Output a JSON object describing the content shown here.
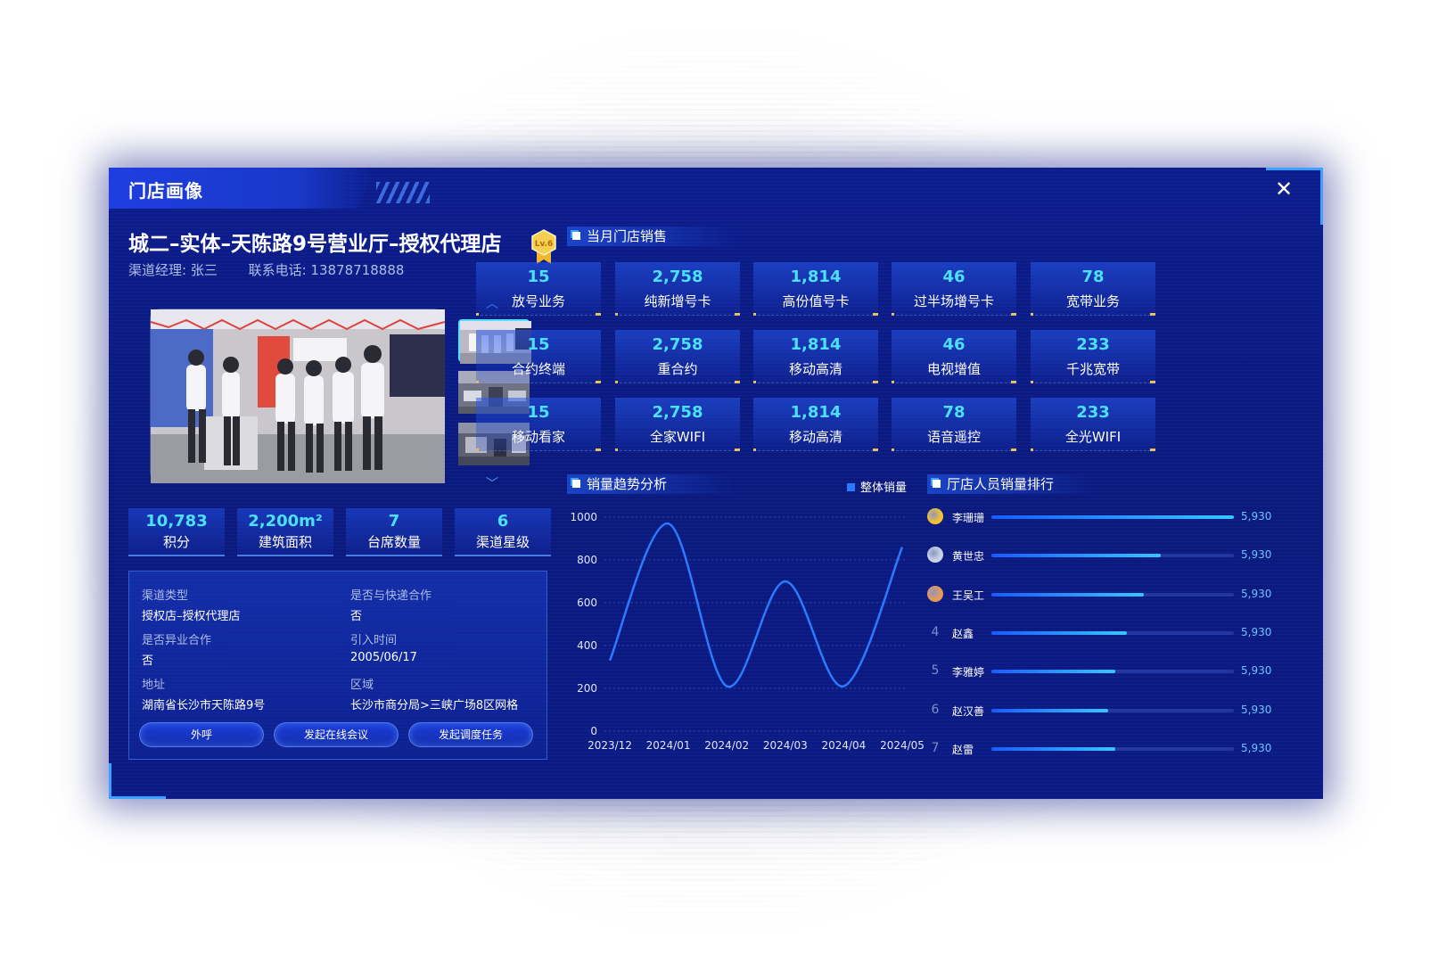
{
  "window": {
    "title": "门店画像",
    "close_icon": "close-icon"
  },
  "store": {
    "name": "城二–实体–天陈路9号营业厅–授权代理店",
    "level": "Lv.6",
    "manager": "渠道经理: 张三",
    "phone": "联系电话: 13878718888"
  },
  "stats": [
    {
      "value": "10,783",
      "label": "积分"
    },
    {
      "value": "2,200m²",
      "label": "建筑面积"
    },
    {
      "value": "7",
      "label": "台席数量"
    },
    {
      "value": "6",
      "label": "渠道星级"
    }
  ],
  "info": {
    "channel_type_k": "渠道类型",
    "channel_type_v": "授权店–授权代理店",
    "express_k": "是否与快递合作",
    "express_v": "否",
    "crossbiz_k": "是否异业合作",
    "crossbiz_v": "否",
    "intro_k": "引入时间",
    "intro_v": "2005/06/17",
    "addr_k": "地址",
    "addr_v": "湖南省长沙市天陈路9号",
    "region_k": "区域",
    "region_v": "长沙市商分局>三峡广场8区网格"
  },
  "actions": {
    "call": "外呼",
    "meeting": "发起在线会议",
    "dispatch": "发起调度任务"
  },
  "sections": {
    "sales": "当月门店销售",
    "trend": "销量趋势分析",
    "ranking": "厅店人员销量排行"
  },
  "metrics": [
    {
      "value": "15",
      "label": "放号业务"
    },
    {
      "value": "2,758",
      "label": "纯新增号卡"
    },
    {
      "value": "1,814",
      "label": "高份值号卡"
    },
    {
      "value": "46",
      "label": "过半场增号卡"
    },
    {
      "value": "78",
      "label": "宽带业务"
    },
    {
      "value": "15",
      "label": "合约终端"
    },
    {
      "value": "2,758",
      "label": "重合约"
    },
    {
      "value": "1,814",
      "label": "移动高清"
    },
    {
      "value": "46",
      "label": "电视增值"
    },
    {
      "value": "233",
      "label": "千兆宽带"
    },
    {
      "value": "15",
      "label": "移动看家"
    },
    {
      "value": "2,758",
      "label": "全家WIFI"
    },
    {
      "value": "1,814",
      "label": "移动高清"
    },
    {
      "value": "78",
      "label": "语音遥控"
    },
    {
      "value": "233",
      "label": "全光WIFI"
    }
  ],
  "chart_data": {
    "type": "line",
    "title": "销量趋势分析",
    "x": [
      "2023/12",
      "2024/01",
      "2024/02",
      "2024/03",
      "2024/04",
      "2024/05"
    ],
    "series": [
      {
        "name": "整体销量",
        "color": "#2a7bff",
        "values": [
          330,
          970,
          210,
          700,
          210,
          860
        ]
      }
    ],
    "yticks": [
      0,
      200,
      400,
      600,
      800,
      1000
    ],
    "ylim": [
      0,
      1000
    ],
    "grid": true,
    "legend": "top-right"
  },
  "ranking": [
    {
      "rank": "1",
      "name": "李珊珊",
      "value": "5,930",
      "share": 1.0,
      "medal": "#f2c230"
    },
    {
      "rank": "2",
      "name": "黄世忠",
      "value": "5,930",
      "share": 0.7,
      "medal": "#c9d3e6"
    },
    {
      "rank": "3",
      "name": "王吴工",
      "value": "5,930",
      "share": 0.63,
      "medal": "#e89a52"
    },
    {
      "rank": "4",
      "name": "赵鑫",
      "value": "5,930",
      "share": 0.56
    },
    {
      "rank": "5",
      "name": "李雅婷",
      "value": "5,930",
      "share": 0.51
    },
    {
      "rank": "6",
      "name": "赵汉善",
      "value": "5,930",
      "share": 0.48
    },
    {
      "rank": "7",
      "name": "赵雷",
      "value": "5,930",
      "share": 0.51
    }
  ]
}
